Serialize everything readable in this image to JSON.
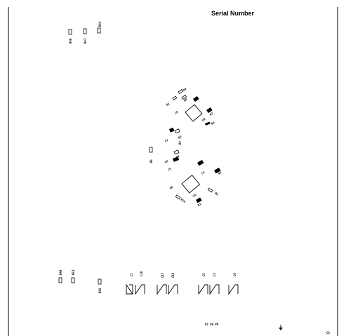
{
  "board": {
    "title": "Serial Number",
    "corner_label": "C3",
    "labels": {
      "top_left_1": "R46",
      "top_left_2": "R47",
      "top_left_3": "R44",
      "c_r9": "R9",
      "c_q1": "Q1",
      "c_r8": "R8",
      "c_c8": "C8",
      "c_u8": "U8",
      "c_r7": "R7",
      "c_r6": "R6",
      "c_q3": "Q3",
      "c_r4": "R4",
      "c_c2": "C2",
      "c_q2": "Q2",
      "c_r5": "R5",
      "c_u4": "U4",
      "c_c5": "C5",
      "c_c4": "C4",
      "c_r3": "R3",
      "c_c3": "C3",
      "c_q4": "Q4",
      "c_r2": "R2",
      "c_u1": "U1",
      "c_r1": "R1",
      "c_r10": "R10",
      "b_r48": "R48",
      "b_r53": "R53",
      "b_r50": "R50",
      "b_c7": "C7",
      "b_c10": "C10",
      "b_c17": "C17",
      "b_c19": "C19",
      "b_c5": "C5",
      "b_c3": "C3",
      "b_c6": "C6",
      "bottom_pins": "P7 P8 P9"
    }
  }
}
